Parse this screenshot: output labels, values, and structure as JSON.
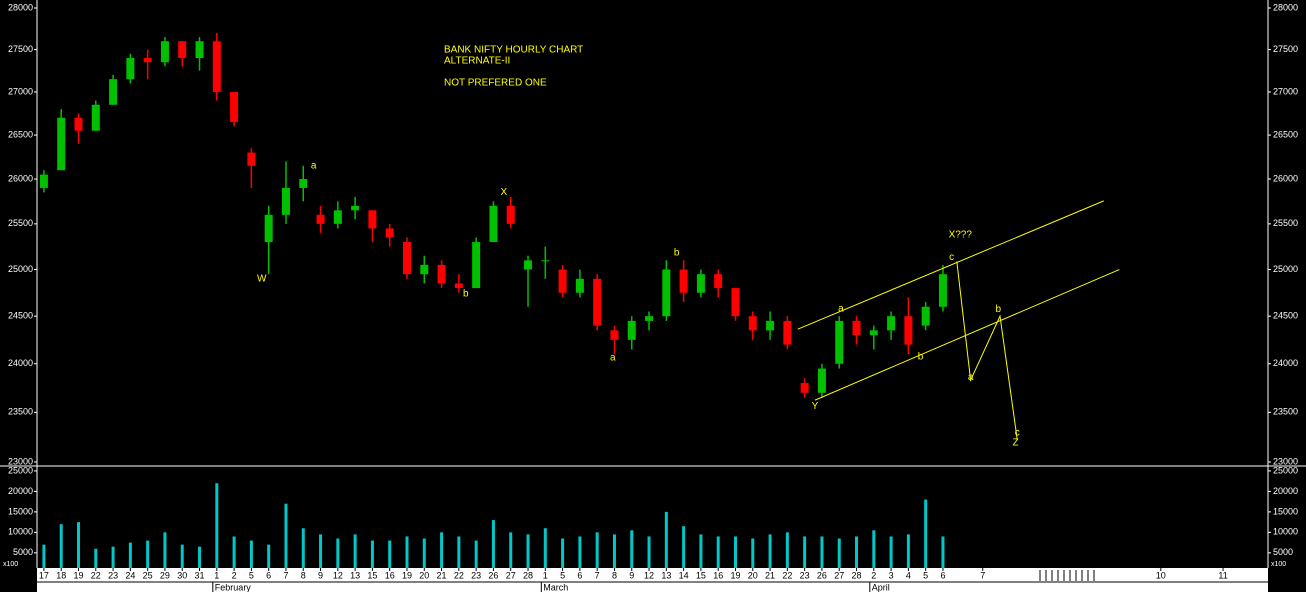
{
  "chart_data": {
    "type": "ohlc",
    "title": "BANK NIFTY HOURLY CHART",
    "subtitle": "ALTERNATE-II",
    "note": "NOT PREFERED ONE",
    "log_scale": true,
    "up_color": "#00c000",
    "down_color": "#ff0000",
    "annotation_color": "#ffff00",
    "xlim": [
      -0.4,
      70.8
    ],
    "xticks": [
      {
        "value": 0,
        "label": "17"
      },
      {
        "value": 1,
        "label": "18"
      },
      {
        "value": 2,
        "label": "19"
      },
      {
        "value": 3,
        "label": "22"
      },
      {
        "value": 4,
        "label": "23"
      },
      {
        "value": 5,
        "label": "24"
      },
      {
        "value": 6,
        "label": "25"
      },
      {
        "value": 7,
        "label": "29"
      },
      {
        "value": 8,
        "label": "30"
      },
      {
        "value": 9,
        "label": "31"
      },
      {
        "value": 10,
        "label": "1"
      },
      {
        "value": 11,
        "label": "2"
      },
      {
        "value": 12,
        "label": "5"
      },
      {
        "value": 13,
        "label": "6"
      },
      {
        "value": 14,
        "label": "7"
      },
      {
        "value": 15,
        "label": "8"
      },
      {
        "value": 16,
        "label": "9"
      },
      {
        "value": 17,
        "label": "12"
      },
      {
        "value": 18,
        "label": "13"
      },
      {
        "value": 19,
        "label": "15"
      },
      {
        "value": 20,
        "label": "16"
      },
      {
        "value": 21,
        "label": "19"
      },
      {
        "value": 22,
        "label": "20"
      },
      {
        "value": 23,
        "label": "21"
      },
      {
        "value": 24,
        "label": "22"
      },
      {
        "value": 25,
        "label": "23"
      },
      {
        "value": 26,
        "label": "26"
      },
      {
        "value": 27,
        "label": "27"
      },
      {
        "value": 28,
        "label": "28"
      },
      {
        "value": 29,
        "label": "1"
      },
      {
        "value": 30,
        "label": "5"
      },
      {
        "value": 31,
        "label": "6"
      },
      {
        "value": 32,
        "label": "7"
      },
      {
        "value": 33,
        "label": "8"
      },
      {
        "value": 34,
        "label": "9"
      },
      {
        "value": 35,
        "label": "12"
      },
      {
        "value": 36,
        "label": "13"
      },
      {
        "value": 37,
        "label": "14"
      },
      {
        "value": 38,
        "label": "15"
      },
      {
        "value": 39,
        "label": "16"
      },
      {
        "value": 40,
        "label": "19"
      },
      {
        "value": 41,
        "label": "20"
      },
      {
        "value": 42,
        "label": "21"
      },
      {
        "value": 43,
        "label": "22"
      },
      {
        "value": 44,
        "label": "23"
      },
      {
        "value": 45,
        "label": "26"
      },
      {
        "value": 46,
        "label": "27"
      },
      {
        "value": 47,
        "label": "28"
      },
      {
        "value": 48,
        "label": "2"
      },
      {
        "value": 49,
        "label": "3"
      },
      {
        "value": 50,
        "label": "4"
      },
      {
        "value": 51,
        "label": "5"
      },
      {
        "value": 52,
        "label": "6"
      },
      {
        "value": 54.3,
        "label": "7"
      },
      {
        "value": 64.6,
        "label": "10"
      },
      {
        "value": 68.2,
        "label": "11"
      }
    ],
    "months": [
      {
        "value": 10,
        "label": "February"
      },
      {
        "value": 29,
        "label": "March"
      },
      {
        "value": 48,
        "label": "April"
      }
    ],
    "ylim": [
      22960,
      28073
    ],
    "yticks": [
      23000,
      23500,
      24000,
      24500,
      25000,
      25500,
      26000,
      26500,
      27000,
      27500,
      28000
    ],
    "open": [
      25900,
      26100,
      26700,
      26550,
      26850,
      27150,
      27400,
      27350,
      27600,
      27400,
      27600,
      27000,
      26300,
      25300,
      25600,
      25900,
      25600,
      25500,
      25650,
      25650,
      25450,
      25300,
      24950,
      25050,
      24850,
      24800,
      25300,
      25700,
      25000,
      25100,
      25000,
      24750,
      24900,
      24350,
      24250,
      24450,
      24500,
      25000,
      24750,
      24950,
      24800,
      24500,
      24350,
      24450,
      23800,
      23700,
      24000,
      24450,
      24300,
      24350,
      24500,
      24400,
      24600
    ],
    "high": [
      26100,
      26800,
      26750,
      26900,
      27200,
      27450,
      27500,
      27650,
      27600,
      27650,
      27700,
      27000,
      26350,
      25700,
      26200,
      26150,
      25700,
      25750,
      25800,
      25650,
      25500,
      25350,
      25150,
      25100,
      24950,
      25350,
      25750,
      25800,
      25150,
      25250,
      25050,
      25000,
      24950,
      24400,
      24500,
      24550,
      25100,
      25100,
      25000,
      25000,
      24800,
      24550,
      24550,
      24500,
      23850,
      24000,
      24500,
      24500,
      24400,
      24550,
      24700,
      24650,
      25050
    ],
    "low": [
      25850,
      26100,
      26400,
      26550,
      26850,
      27100,
      27150,
      27300,
      27300,
      27250,
      26900,
      26600,
      25900,
      24950,
      25500,
      25750,
      25400,
      25450,
      25550,
      25300,
      25250,
      24900,
      24850,
      24800,
      24750,
      24800,
      25300,
      25450,
      24600,
      24900,
      24700,
      24700,
      24350,
      24100,
      24150,
      24350,
      24450,
      24650,
      24700,
      24700,
      24450,
      24250,
      24250,
      24150,
      23650,
      23650,
      23950,
      24200,
      24150,
      24250,
      24100,
      24350,
      24550
    ],
    "close": [
      26050,
      26700,
      26550,
      26850,
      27150,
      27400,
      27350,
      27600,
      27400,
      27600,
      27000,
      26650,
      26150,
      25600,
      25900,
      26000,
      25500,
      25650,
      25700,
      25450,
      25350,
      24950,
      25050,
      24850,
      24800,
      25300,
      25700,
      25500,
      25100,
      25100,
      24750,
      24900,
      24400,
      24250,
      24450,
      24500,
      25000,
      24750,
      24950,
      24800,
      24500,
      24350,
      24450,
      24200,
      23700,
      23950,
      24450,
      24300,
      24350,
      24500,
      24200,
      24600,
      24950
    ],
    "volume": {
      "color": "#00c8c8",
      "unit": "x100",
      "ylim": [
        1300,
        26200
      ],
      "yticks": [
        5000,
        10000,
        15000,
        20000,
        25000
      ],
      "values": [
        7000,
        12000,
        12500,
        6000,
        6500,
        7500,
        8000,
        10000,
        7000,
        6500,
        22000,
        9000,
        8000,
        7000,
        17000,
        11000,
        9500,
        8500,
        9500,
        8000,
        8000,
        9000,
        8500,
        10000,
        9000,
        8000,
        13000,
        10000,
        9500,
        11000,
        8500,
        9000,
        10000,
        9500,
        10500,
        9000,
        15000,
        11500,
        9500,
        9000,
        9000,
        8500,
        9500,
        10000,
        9000,
        9000,
        8500,
        9000,
        10500,
        9000,
        9500,
        18000,
        9000
      ]
    },
    "annotations": [
      {
        "text": "W",
        "x": 12.6,
        "y": 24900
      },
      {
        "text": "a",
        "x": 15.6,
        "y": 26150
      },
      {
        "text": "b",
        "x": 24.4,
        "y": 24740
      },
      {
        "text": "X",
        "x": 26.6,
        "y": 25850
      },
      {
        "text": "a",
        "x": 32.9,
        "y": 24060
      },
      {
        "text": "b",
        "x": 36.6,
        "y": 25180
      },
      {
        "text": "Y",
        "x": 44.6,
        "y": 23560
      },
      {
        "text": "a",
        "x": 46.1,
        "y": 24580
      },
      {
        "text": "b",
        "x": 50.7,
        "y": 24070
      },
      {
        "text": "c",
        "x": 52.5,
        "y": 25130
      },
      {
        "text": "X???",
        "x": 53.0,
        "y": 25380
      },
      {
        "text": "a",
        "x": 53.6,
        "y": 23860
      },
      {
        "text": "b",
        "x": 55.2,
        "y": 24570
      },
      {
        "text": "c",
        "x": 56.3,
        "y": 23290
      },
      {
        "text": "Z",
        "x": 56.2,
        "y": 23190
      }
    ],
    "channel": [
      [
        43.6,
        24362,
        61.3,
        25755
      ],
      [
        44.6,
        23625,
        62.2,
        25000
      ]
    ],
    "projection": {
      "x": [
        52.8,
        53.6,
        55.3,
        56.3
      ],
      "y": [
        25090,
        23830,
        24500,
        23220
      ]
    }
  }
}
